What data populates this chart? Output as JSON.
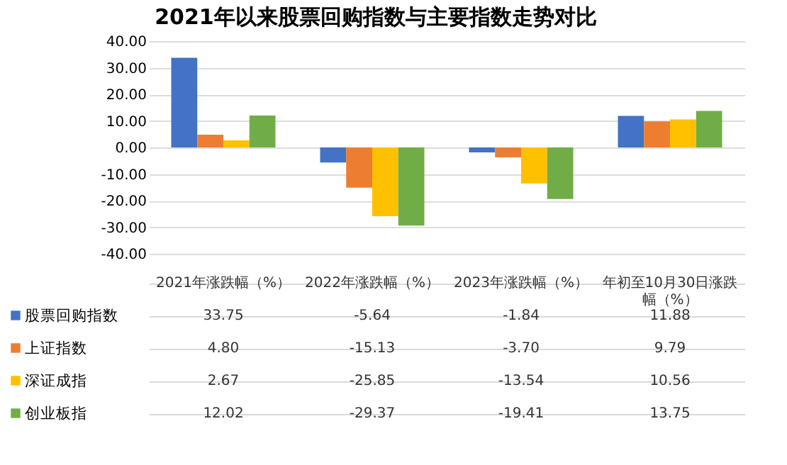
{
  "chart_data": {
    "type": "bar",
    "title": "2021年以来股票回购指数与主要指数走势对比",
    "categories": [
      "2021年涨跌幅（%）",
      "2022年涨跌幅（%）",
      "2023年涨跌幅（%）",
      "年初至10月30日涨跌幅（%）"
    ],
    "series": [
      {
        "name": "股票回购指数",
        "color": "#4472c4",
        "values": [
          33.75,
          -5.64,
          -1.84,
          11.88
        ],
        "value_labels": [
          "33.75",
          "-5.64",
          "-1.84",
          "11.88"
        ]
      },
      {
        "name": "上证指数",
        "color": "#ed7d31",
        "values": [
          4.8,
          -15.13,
          -3.7,
          9.79
        ],
        "value_labels": [
          "4.80",
          "-15.13",
          "-3.70",
          "9.79"
        ]
      },
      {
        "name": "深证成指",
        "color": "#ffc000",
        "values": [
          2.67,
          -25.85,
          -13.54,
          10.56
        ],
        "value_labels": [
          "2.67",
          "-25.85",
          "-13.54",
          "10.56"
        ]
      },
      {
        "name": "创业板指",
        "color": "#70ad47",
        "values": [
          12.02,
          -29.37,
          -19.41,
          13.75
        ],
        "value_labels": [
          "12.02",
          "-29.37",
          "-19.41",
          "13.75"
        ]
      }
    ],
    "ylim": [
      -40,
      40
    ],
    "yticks": [
      {
        "value": -40,
        "label": "-40.00"
      },
      {
        "value": -30,
        "label": "-30.00"
      },
      {
        "value": -20,
        "label": "-20.00"
      },
      {
        "value": -10,
        "label": "-10.00"
      },
      {
        "value": 0,
        "label": "0.00"
      },
      {
        "value": 10,
        "label": "10.00"
      },
      {
        "value": 20,
        "label": "20.00"
      },
      {
        "value": 30,
        "label": "30.00"
      },
      {
        "value": 40,
        "label": "40.00"
      }
    ],
    "grid": "y",
    "legend": "bottom"
  }
}
